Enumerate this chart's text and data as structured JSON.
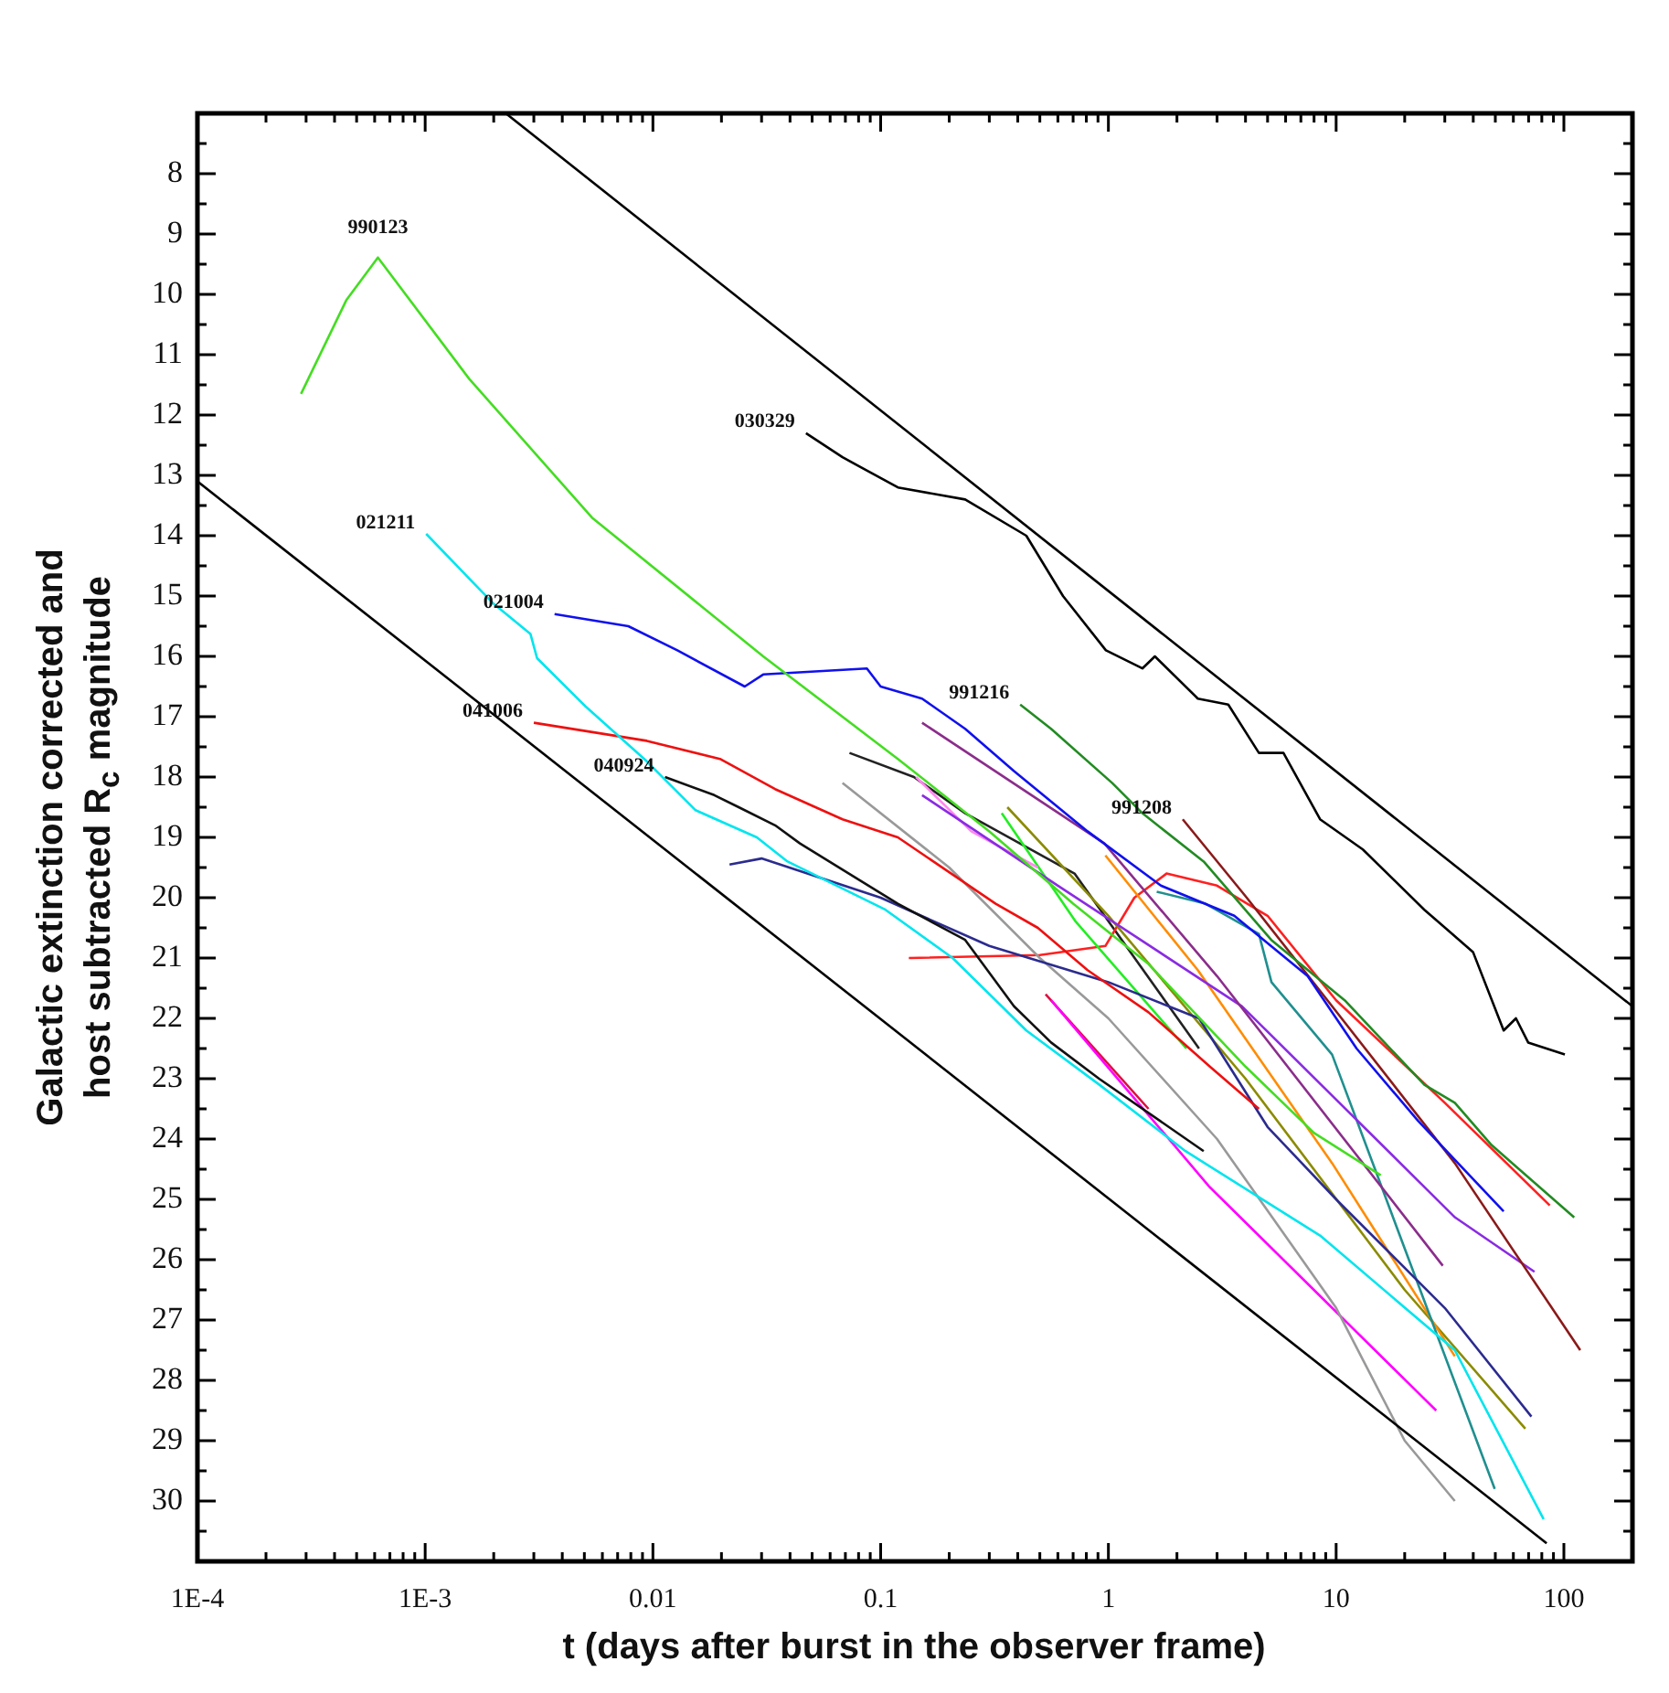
{
  "chart_data": {
    "type": "line",
    "xlabel": "t (days after burst in the observer frame)",
    "ylabel": "Galactic extinction corrected and host subtracted R$_{c}$ magnitude",
    "log": "x",
    "grid": false,
    "legend": false,
    "marker": "none",
    "xlim": [
      0.0001,
      200
    ],
    "ylim": [
      31,
      7
    ],
    "xticks": [
      {
        "value": 0.0001,
        "label": "1E-4"
      },
      {
        "value": 0.0002,
        "label": null
      },
      {
        "value": 0.0003,
        "label": null
      },
      {
        "value": 0.0004,
        "label": null
      },
      {
        "value": 0.0005,
        "label": null
      },
      {
        "value": 0.0006,
        "label": null
      },
      {
        "value": 0.0007,
        "label": null
      },
      {
        "value": 0.0008,
        "label": null
      },
      {
        "value": 0.0009,
        "label": null
      },
      {
        "value": 0.001,
        "label": "1E-3"
      },
      {
        "value": 0.002,
        "label": null
      },
      {
        "value": 0.003,
        "label": null
      },
      {
        "value": 0.004,
        "label": null
      },
      {
        "value": 0.005,
        "label": null
      },
      {
        "value": 0.006,
        "label": null
      },
      {
        "value": 0.007,
        "label": null
      },
      {
        "value": 0.008,
        "label": null
      },
      {
        "value": 0.009,
        "label": null
      },
      0.01,
      {
        "value": 0.02,
        "label": null
      },
      {
        "value": 0.03,
        "label": null
      },
      {
        "value": 0.04,
        "label": null
      },
      {
        "value": 0.05,
        "label": null
      },
      {
        "value": 0.06,
        "label": null
      },
      {
        "value": 0.07,
        "label": null
      },
      {
        "value": 0.08,
        "label": null
      },
      {
        "value": 0.09,
        "label": null
      },
      0.1,
      {
        "value": 0.2,
        "label": null
      },
      {
        "value": 0.3,
        "label": null
      },
      {
        "value": 0.4,
        "label": null
      },
      {
        "value": 0.5,
        "label": null
      },
      {
        "value": 0.6,
        "label": null
      },
      {
        "value": 0.7,
        "label": null
      },
      {
        "value": 0.8,
        "label": null
      },
      {
        "value": 0.9,
        "label": null
      },
      1,
      {
        "value": 2,
        "label": null
      },
      {
        "value": 3,
        "label": null
      },
      {
        "value": 4,
        "label": null
      },
      {
        "value": 5,
        "label": null
      },
      {
        "value": 6,
        "label": null
      },
      {
        "value": 7,
        "label": null
      },
      {
        "value": 8,
        "label": null
      },
      {
        "value": 9,
        "label": null
      },
      10,
      {
        "value": 20,
        "label": null
      },
      {
        "value": 30,
        "label": null
      },
      {
        "value": 40,
        "label": null
      },
      {
        "value": 50,
        "label": null
      },
      {
        "value": 60,
        "label": null
      },
      {
        "value": 70,
        "label": null
      },
      {
        "value": 80,
        "label": null
      },
      {
        "value": 90,
        "label": null
      },
      100,
      {
        "value": 200,
        "label": null
      }
    ],
    "yticks": [
      {
        "value": 7.5,
        "label": null
      },
      8,
      {
        "value": 8.5,
        "label": null
      },
      9,
      {
        "value": 9.5,
        "label": null
      },
      10,
      {
        "value": 10.5,
        "label": null
      },
      11,
      {
        "value": 11.5,
        "label": null
      },
      12,
      {
        "value": 12.5,
        "label": null
      },
      13,
      {
        "value": 13.5,
        "label": null
      },
      14,
      {
        "value": 14.5,
        "label": null
      },
      15,
      {
        "value": 15.5,
        "label": null
      },
      16,
      {
        "value": 16.5,
        "label": null
      },
      17,
      {
        "value": 17.5,
        "label": null
      },
      18,
      {
        "value": 18.5,
        "label": null
      },
      19,
      {
        "value": 19.5,
        "label": null
      },
      20,
      {
        "value": 20.5,
        "label": null
      },
      21,
      {
        "value": 21.5,
        "label": null
      },
      22,
      {
        "value": 22.5,
        "label": null
      },
      23,
      {
        "value": 23.5,
        "label": null
      },
      24,
      {
        "value": 24.5,
        "label": null
      },
      25,
      {
        "value": 25.5,
        "label": null
      },
      26,
      {
        "value": 26.5,
        "label": null
      },
      27,
      {
        "value": 27.5,
        "label": null
      },
      28,
      {
        "value": 28.5,
        "label": null
      },
      29,
      {
        "value": 29.5,
        "label": null
      },
      30,
      {
        "value": 30.5,
        "label": null
      }
    ],
    "series": [
      {
        "type": "line",
        "color": "#000000",
        "x": [
          0.00226,
          200
        ],
        "values": [
          7.0,
          21.8
        ]
      },
      {
        "type": "line",
        "color": "#000000",
        "x": [
          0.0001,
          84
        ],
        "values": [
          13.1,
          30.7
        ]
      },
      {
        "name": "990123",
        "color": "#44dd22",
        "x": [
          0.000285,
          0.00045,
          0.00062,
          0.00156,
          0.0054,
          0.0305,
          0.119,
          0.3,
          0.7,
          1.5,
          4,
          8,
          15.7
        ],
        "values": [
          11.65,
          10.1,
          9.39,
          11.4,
          13.7,
          16.0,
          17.7,
          18.9,
          20.1,
          21.1,
          22.8,
          23.9,
          24.6
        ]
      },
      {
        "name": "021211",
        "color": "#00e5ee",
        "x": [
          0.00101,
          0.002,
          0.0029,
          0.0031,
          0.00506,
          0.0094,
          0.0154,
          0.0286,
          0.039,
          0.0565,
          0.105,
          0.207,
          0.436,
          0.913,
          2.18,
          8.5,
          33.2,
          81.5
        ],
        "values": [
          13.97,
          15.13,
          15.63,
          16.03,
          16.83,
          17.74,
          18.55,
          19.0,
          19.4,
          19.7,
          20.2,
          21.0,
          22.2,
          23.1,
          24.2,
          25.6,
          27.5,
          30.3
        ]
      },
      {
        "name": "021004",
        "color": "#1010ee",
        "x": [
          0.0037,
          0.0078,
          0.0128,
          0.0253,
          0.0305,
          0.087,
          0.1,
          0.152,
          0.235,
          0.385,
          0.81,
          1.7,
          3.57,
          7.5,
          12.3,
          22.9,
          54.4
        ],
        "values": [
          15.3,
          15.5,
          15.9,
          16.5,
          16.3,
          16.2,
          16.5,
          16.7,
          17.2,
          17.9,
          18.9,
          19.8,
          20.3,
          21.3,
          22.5,
          23.7,
          25.2
        ]
      },
      {
        "name": "041006",
        "color": "#ee1010",
        "x": [
          0.003,
          0.0094,
          0.0197,
          0.0344,
          0.068,
          0.119,
          0.32,
          0.49,
          0.81,
          1.5,
          2.79,
          4.58
        ],
        "values": [
          17.1,
          17.4,
          17.7,
          18.2,
          18.7,
          19.0,
          20.1,
          20.5,
          21.2,
          21.9,
          22.8,
          23.5
        ]
      },
      {
        "name": "040924",
        "color": "#111111",
        "x": [
          0.0113,
          0.0186,
          0.0238,
          0.0344,
          0.0442,
          0.119,
          0.235,
          0.385,
          0.56,
          0.91,
          2.62
        ],
        "values": [
          18.0,
          18.3,
          18.5,
          18.8,
          19.1,
          20.1,
          20.7,
          21.8,
          22.4,
          23.0,
          24.2
        ]
      },
      {
        "name": "030329",
        "color": "#000000",
        "x": [
          0.047,
          0.068,
          0.119,
          0.235,
          0.436,
          0.632,
          0.975,
          1.41,
          1.6,
          2.47,
          3.36,
          4.58,
          5.87,
          8.5,
          13.1,
          24.4,
          39.9,
          54.4,
          61.6,
          69.7,
          101
        ],
        "values": [
          12.3,
          12.7,
          13.2,
          13.4,
          14.0,
          15.0,
          15.9,
          16.2,
          16.0,
          16.7,
          16.8,
          17.6,
          17.6,
          18.7,
          19.2,
          20.2,
          20.9,
          22.2,
          22.0,
          22.4,
          22.6
        ]
      },
      {
        "name": "991216",
        "color": "#228b22",
        "x": [
          0.41,
          0.56,
          1.04,
          1.41,
          2.62,
          5.19,
          10.9,
          24.4,
          33.2,
          48.1,
          111
        ],
        "values": [
          16.8,
          17.2,
          18.1,
          18.6,
          19.4,
          20.7,
          21.7,
          23.1,
          23.4,
          24.1,
          25.3
        ]
      },
      {
        "name": "991208",
        "color": "#8b1a1a",
        "x": [
          2.12,
          4.05,
          9.6,
          33.2,
          118
        ],
        "values": [
          18.7,
          20.0,
          21.8,
          24.4,
          27.5
        ]
      },
      {
        "type": "line",
        "color": "#8b2d8b",
        "x": [
          0.152,
          0.96,
          3.0,
          29.4
        ],
        "values": [
          17.1,
          19.1,
          21.3,
          26.1
        ]
      },
      {
        "type": "line",
        "color": "#8a2be2",
        "x": [
          0.152,
          0.6,
          3.86,
          33.3,
          74.3
        ],
        "values": [
          18.3,
          19.8,
          21.8,
          25.3,
          26.2
        ]
      },
      {
        "type": "line",
        "color": "#2b2b8f",
        "x": [
          0.0217,
          0.03,
          0.1,
          0.3,
          1.0,
          2.5,
          5,
          10,
          30,
          72
        ],
        "values": [
          19.45,
          19.35,
          20.0,
          20.8,
          21.4,
          22.0,
          23.8,
          25.0,
          26.8,
          28.6
        ]
      },
      {
        "type": "line",
        "color": "#999999",
        "x": [
          0.068,
          0.2,
          0.5,
          1,
          3,
          10,
          20,
          33.2
        ],
        "values": [
          18.1,
          19.5,
          21.0,
          22.0,
          24.0,
          26.8,
          29.0,
          30.0
        ]
      },
      {
        "type": "line",
        "color": "#1f8f8f",
        "x": [
          1.63,
          2.67,
          4.58,
          5.2,
          9.6,
          49.7
        ],
        "values": [
          19.9,
          20.1,
          20.6,
          21.4,
          22.6,
          29.8
        ]
      },
      {
        "type": "line",
        "color": "#ff8c00",
        "x": [
          0.97,
          2.47,
          9.6,
          33.2
        ],
        "values": [
          19.3,
          21.2,
          24.4,
          27.6
        ]
      },
      {
        "type": "line",
        "color": "#ff00ff",
        "x": [
          0.56,
          2.79,
          27.5
        ],
        "values": [
          21.7,
          24.8,
          28.5
        ]
      },
      {
        "type": "line",
        "color": "#ff88ee",
        "x": [
          0.143,
          0.25,
          0.49
        ],
        "values": [
          18.0,
          18.9,
          19.5
        ]
      },
      {
        "type": "line",
        "color": "#22ee22",
        "x": [
          0.34,
          0.72,
          2.2
        ],
        "values": [
          18.6,
          20.4,
          22.5
        ]
      },
      {
        "type": "line",
        "color": "#8b8b00",
        "x": [
          0.36,
          1.0,
          4,
          20,
          67.7
        ],
        "values": [
          18.5,
          20.3,
          23.0,
          26.5,
          28.8
        ]
      },
      {
        "type": "line",
        "color": "#ff2020",
        "x": [
          0.133,
          0.5,
          0.97,
          1.3,
          1.8,
          3,
          5,
          10,
          30,
          86.7
        ],
        "values": [
          21.0,
          20.95,
          20.8,
          20.0,
          19.6,
          19.8,
          20.3,
          21.7,
          23.4,
          25.1
        ]
      },
      {
        "type": "line",
        "color": "#dd1040",
        "x": [
          0.53,
          1.5
        ],
        "values": [
          21.6,
          23.5
        ]
      },
      {
        "type": "line",
        "color": "#222222",
        "x": [
          0.073,
          0.14,
          0.235,
          0.71,
          2.5
        ],
        "values": [
          17.6,
          18.0,
          18.6,
          19.6,
          22.5
        ]
      }
    ]
  }
}
